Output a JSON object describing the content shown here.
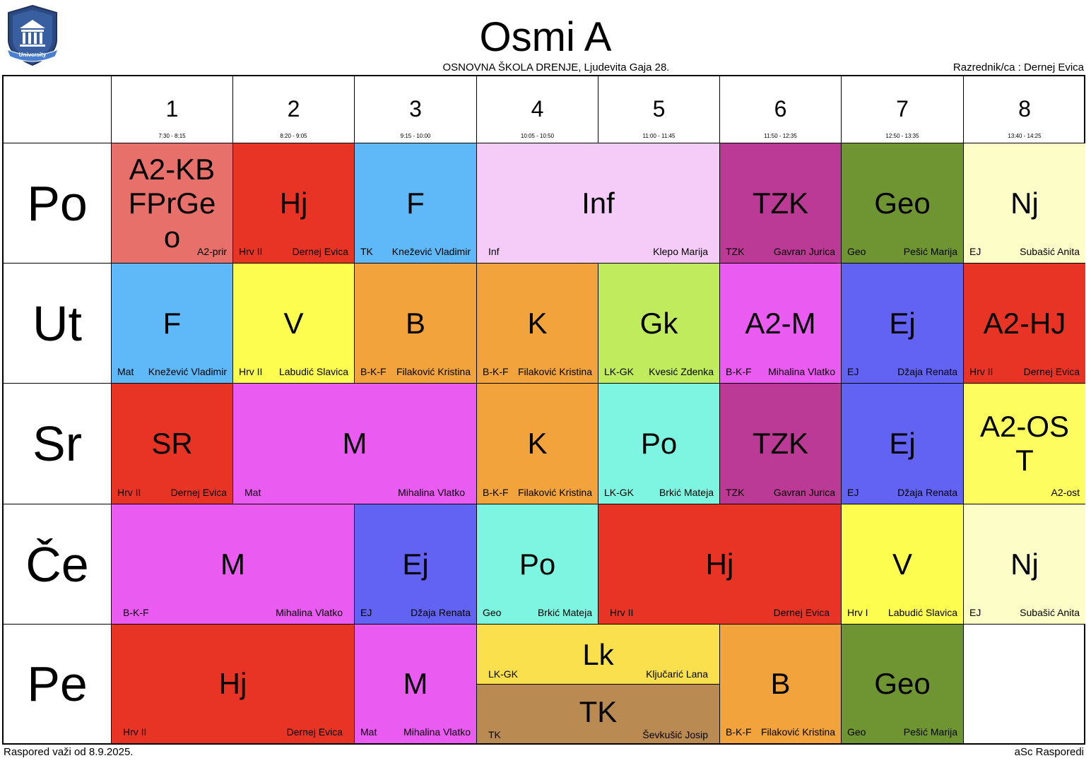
{
  "header": {
    "title": "Osmi A",
    "school": "OSNOVNA ŠKOLA  DRENJE, Ljudevita Gaja 28.",
    "class_teacher": "Razrednik/ca : Dernej Evica",
    "logo_text": "University"
  },
  "periods": [
    {
      "num": "1",
      "time": "7:30 - 8:15"
    },
    {
      "num": "2",
      "time": "8:20 - 9:05"
    },
    {
      "num": "3",
      "time": "9:15 - 10:00"
    },
    {
      "num": "4",
      "time": "10:05 - 10:50"
    },
    {
      "num": "5",
      "time": "11:00 - 11:45"
    },
    {
      "num": "6",
      "time": "11:50 - 12:35"
    },
    {
      "num": "7",
      "time": "12:50 - 13:35"
    },
    {
      "num": "8",
      "time": "13:40 - 14:25"
    }
  ],
  "days": [
    "Po",
    "Ut",
    "Sr",
    "Če",
    "Pe"
  ],
  "lessons": {
    "po_1": {
      "subject": "A2-KB FPrGe o",
      "left": "",
      "right": "A2-prir",
      "color": "#e8706a"
    },
    "po_2": {
      "subject": "Hj",
      "left": "Hrv II",
      "right": "Dernej Evica",
      "color": "#e83424"
    },
    "po_3": {
      "subject": "F",
      "left": "TK",
      "right": "Knežević Vladimir",
      "color": "#5fb8f8"
    },
    "po_45": {
      "subject": "Inf",
      "left": "Inf",
      "right": "Klepo Marija",
      "color": "#f5ccf8"
    },
    "po_6": {
      "subject": "TZK",
      "left": "TZK",
      "right": "Gavran Jurica",
      "color": "#bb3a95"
    },
    "po_7": {
      "subject": "Geo",
      "left": "Geo",
      "right": "Pešić Marija",
      "color": "#6f9432"
    },
    "po_8": {
      "subject": "Nj",
      "left": "EJ",
      "right": "Subašić Anita",
      "color": "#fdfdc8"
    },
    "ut_1": {
      "subject": "F",
      "left": "Mat",
      "right": "Knežević Vladimir",
      "color": "#5fb8f8"
    },
    "ut_2": {
      "subject": "V",
      "left": "Hrv II",
      "right": "Labudić Slavica",
      "color": "#fdfd50"
    },
    "ut_3": {
      "subject": "B",
      "left": "B-K-F",
      "right": "Filaković Kristina",
      "color": "#f2a33b"
    },
    "ut_4": {
      "subject": "K",
      "left": "B-K-F",
      "right": "Filaković Kristina",
      "color": "#f2a33b"
    },
    "ut_5": {
      "subject": "Gk",
      "left": "LK-GK",
      "right": "Kvesić Zdenka",
      "color": "#bfeb5c"
    },
    "ut_6": {
      "subject": "A2-M",
      "left": "B-K-F",
      "right": "Mihalina Vlatko",
      "color": "#ea5bf2"
    },
    "ut_7": {
      "subject": "Ej",
      "left": "EJ",
      "right": "Džaja Renata",
      "color": "#6263f3"
    },
    "ut_8": {
      "subject": "A2-HJ",
      "left": "Hrv II",
      "right": "Dernej Evica",
      "color": "#e83424"
    },
    "sr_1": {
      "subject": "SR",
      "left": "Hrv II",
      "right": "Dernej Evica",
      "color": "#e83424"
    },
    "sr_23": {
      "subject": "M",
      "left": "Mat",
      "right": "Mihalina Vlatko",
      "color": "#ea5bf2"
    },
    "sr_4": {
      "subject": "K",
      "left": "B-K-F",
      "right": "Filaković Kristina",
      "color": "#f2a33b"
    },
    "sr_5": {
      "subject": "Po",
      "left": "LK-GK",
      "right": "Brkić Mateja",
      "color": "#7ef5e0"
    },
    "sr_6": {
      "subject": "TZK",
      "left": "TZK",
      "right": "Gavran Jurica",
      "color": "#bb3a95"
    },
    "sr_7": {
      "subject": "Ej",
      "left": "EJ",
      "right": "Džaja Renata",
      "color": "#6263f3"
    },
    "sr_8": {
      "subject": "A2-OS T",
      "left": "",
      "right": "A2-ost",
      "color": "#fdfd60"
    },
    "ce_12": {
      "subject": "M",
      "left": "B-K-F",
      "right": "Mihalina Vlatko",
      "color": "#ea5bf2"
    },
    "ce_3": {
      "subject": "Ej",
      "left": "EJ",
      "right": "Džaja Renata",
      "color": "#6263f3"
    },
    "ce_4": {
      "subject": "Po",
      "left": "Geo",
      "right": "Brkić Mateja",
      "color": "#7ef5e0"
    },
    "ce_56": {
      "subject": "Hj",
      "left": "Hrv II",
      "right": "Dernej Evica",
      "color": "#e83424"
    },
    "ce_7": {
      "subject": "V",
      "left": "Hrv I",
      "right": "Labudić Slavica",
      "color": "#fdfd50"
    },
    "ce_8": {
      "subject": "Nj",
      "left": "EJ",
      "right": "Subašić Anita",
      "color": "#fdfdc8"
    },
    "pe_12": {
      "subject": "Hj",
      "left": "Hrv II",
      "right": "Dernej Evica",
      "color": "#e83424"
    },
    "pe_3": {
      "subject": "M",
      "left": "Mat",
      "right": "Mihalina Vlatko",
      "color": "#ea5bf2"
    },
    "pe_45a": {
      "subject": "Lk",
      "left": "LK-GK",
      "right": "Ključarić Lana",
      "color": "#fae04d"
    },
    "pe_45b": {
      "subject": "TK",
      "left": "TK",
      "right": "Ševkušić Josip",
      "color": "#b98a52"
    },
    "pe_6": {
      "subject": "B",
      "left": "B-K-F",
      "right": "Filaković Kristina",
      "color": "#f2a33b"
    },
    "pe_7": {
      "subject": "Geo",
      "left": "Geo",
      "right": "Pešić Marija",
      "color": "#6f9432"
    }
  },
  "footer": {
    "left": "Raspored važi od 8.9.2025.",
    "right": "aSc Rasporedi"
  }
}
